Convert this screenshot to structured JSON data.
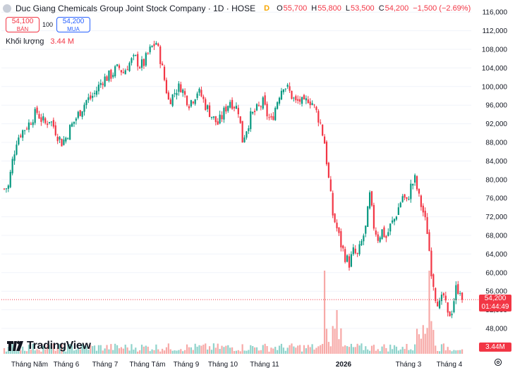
{
  "header": {
    "title": "Duc Giang Chemicals Group Joint Stock Company · 1D · HOSE",
    "flag": "D",
    "o_label": "O",
    "o_value": "55,700",
    "h_label": "H",
    "h_value": "55,800",
    "l_label": "L",
    "l_value": "53,500",
    "c_label": "C",
    "c_value": "54,200",
    "change": "−1,500 (−2.69%)"
  },
  "trade": {
    "sell_price": "54,100",
    "sell_label": "BÁN",
    "spread": "100",
    "buy_price": "54,200",
    "buy_label": "MUA"
  },
  "volume": {
    "label": "Khối lượng",
    "value": "3.44 M"
  },
  "price_tag": {
    "price": "54,200",
    "countdown": "01:44:49",
    "volume": "3.44M"
  },
  "brand": "TradingView",
  "colors": {
    "up": "#089981",
    "down": "#f23645",
    "up_volume": "#8fd3cb",
    "down_volume": "#f7a9a7",
    "grid": "#f0f3fa",
    "text": "#131722",
    "sell": "#f23645",
    "buy": "#2962ff"
  },
  "icons": {
    "logo": "company-logo-icon",
    "settings": "gear-icon",
    "brand": "tradingview-logo-icon"
  },
  "chart_data": {
    "type": "candlestick",
    "yticks": [
      48000,
      52000,
      56000,
      60000,
      64000,
      68000,
      72000,
      76000,
      80000,
      84000,
      88000,
      92000,
      96000,
      100000,
      104000,
      108000,
      112000,
      116000
    ],
    "ytick_labels": [
      "48,000",
      "52,000",
      "56,000",
      "60,000",
      "64,000",
      "68,000",
      "72,000",
      "76,000",
      "80,000",
      "84,000",
      "88,000",
      "92,000",
      "96,000",
      "100,000",
      "104,000",
      "108,000",
      "112,000",
      "116,000"
    ],
    "xlabels": [
      "Tháng Năm",
      "Tháng 6",
      "Tháng 7",
      "Tháng Tám",
      "Tháng 9",
      "Tháng 10",
      "Tháng 11",
      "2026",
      "Tháng 3",
      "Tháng 4"
    ],
    "xlabel_bold": "2026",
    "last_close": 54200,
    "close_trend": [
      [
        0,
        78000
      ],
      [
        1,
        78500
      ],
      [
        2,
        84000
      ],
      [
        3,
        88500
      ],
      [
        4,
        90000
      ],
      [
        5,
        91000
      ],
      [
        6,
        92000
      ],
      [
        7,
        93500
      ],
      [
        8,
        94500
      ],
      [
        9,
        93000
      ],
      [
        10,
        92000
      ],
      [
        11,
        93000
      ],
      [
        12,
        91500
      ],
      [
        13,
        89500
      ],
      [
        14,
        88000
      ],
      [
        15,
        89000
      ],
      [
        16,
        91000
      ],
      [
        17,
        92500
      ],
      [
        18,
        94000
      ],
      [
        19,
        95500
      ],
      [
        20,
        97000
      ],
      [
        21,
        97500
      ],
      [
        22,
        98500
      ],
      [
        23,
        100000
      ],
      [
        24,
        101500
      ],
      [
        25,
        102000
      ],
      [
        26,
        102500
      ],
      [
        27,
        103500
      ],
      [
        28,
        104000
      ],
      [
        29,
        103000
      ],
      [
        30,
        104500
      ],
      [
        31,
        105500
      ],
      [
        32,
        106000
      ],
      [
        33,
        104500
      ],
      [
        34,
        105000
      ],
      [
        35,
        107000
      ],
      [
        36,
        108500
      ],
      [
        37,
        109500
      ],
      [
        38,
        106000
      ],
      [
        39,
        101500
      ],
      [
        40,
        97000
      ],
      [
        41,
        98000
      ],
      [
        42,
        99500
      ],
      [
        43,
        100000
      ],
      [
        44,
        98000
      ],
      [
        45,
        96500
      ],
      [
        46,
        97500
      ],
      [
        47,
        99000
      ],
      [
        48,
        98000
      ],
      [
        49,
        96000
      ],
      [
        50,
        94500
      ],
      [
        51,
        93000
      ],
      [
        52,
        92000
      ],
      [
        53,
        93500
      ],
      [
        54,
        95500
      ],
      [
        55,
        97000
      ],
      [
        56,
        96000
      ],
      [
        57,
        95000
      ],
      [
        58,
        88500
      ],
      [
        59,
        91000
      ],
      [
        60,
        93500
      ],
      [
        61,
        94500
      ],
      [
        62,
        95500
      ],
      [
        63,
        96500
      ],
      [
        64,
        94000
      ],
      [
        65,
        92500
      ],
      [
        66,
        95500
      ],
      [
        67,
        98500
      ],
      [
        68,
        100500
      ],
      [
        69,
        99500
      ],
      [
        70,
        98000
      ],
      [
        71,
        96500
      ],
      [
        72,
        97000
      ],
      [
        73,
        96000
      ],
      [
        74,
        97500
      ],
      [
        75,
        96500
      ],
      [
        76,
        94500
      ],
      [
        77,
        92000
      ],
      [
        78,
        88000
      ],
      [
        79,
        80000
      ],
      [
        80,
        72500
      ],
      [
        81,
        69500
      ],
      [
        82,
        66000
      ],
      [
        83,
        63500
      ],
      [
        84,
        62000
      ],
      [
        85,
        64500
      ],
      [
        86,
        63500
      ],
      [
        87,
        66500
      ],
      [
        88,
        69500
      ],
      [
        89,
        76500
      ],
      [
        90,
        70000
      ],
      [
        91,
        67500
      ],
      [
        92,
        69000
      ],
      [
        93,
        67500
      ],
      [
        94,
        70000
      ],
      [
        95,
        71500
      ],
      [
        96,
        74000
      ],
      [
        97,
        76500
      ],
      [
        98,
        75000
      ],
      [
        99,
        78500
      ],
      [
        100,
        80000
      ],
      [
        101,
        76000
      ],
      [
        102,
        73000
      ],
      [
        103,
        69000
      ],
      [
        104,
        60500
      ],
      [
        105,
        55000
      ],
      [
        106,
        53000
      ],
      [
        107,
        55000
      ],
      [
        108,
        50500
      ],
      [
        109,
        52000
      ],
      [
        110,
        56500
      ],
      [
        111,
        56500
      ],
      [
        112,
        54200
      ]
    ]
  }
}
